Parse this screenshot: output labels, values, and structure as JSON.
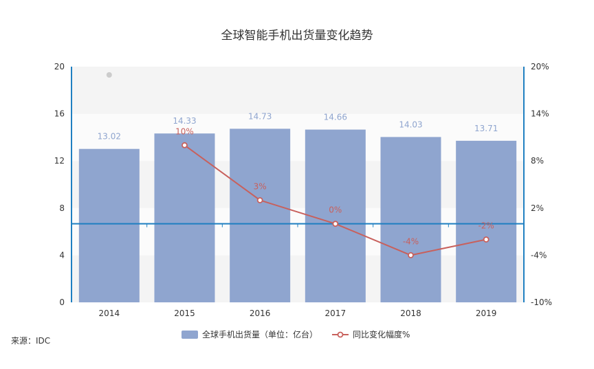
{
  "chart_data": {
    "type": "bar",
    "title": "全球智能手机出货量变化趋势",
    "categories": [
      "2014",
      "2015",
      "2016",
      "2017",
      "2018",
      "2019"
    ],
    "series": [
      {
        "name": "全球手机出货量（单位：亿台）",
        "type": "bar",
        "axis": "left",
        "values": [
          13.02,
          14.33,
          14.73,
          14.66,
          14.03,
          13.71
        ],
        "labels": [
          "13.02",
          "14.33",
          "14.73",
          "14.66",
          "14.03",
          "13.71"
        ],
        "color": "#8fa5cf"
      },
      {
        "name": "同比变化幅度%",
        "type": "line",
        "axis": "right",
        "values": [
          null,
          10,
          3,
          0,
          -4,
          -2
        ],
        "labels": [
          "",
          "10%",
          "3%",
          "0%",
          "-4%",
          "-2%"
        ],
        "color": "#c8605c"
      }
    ],
    "y_left": {
      "range": [
        0,
        20
      ],
      "ticks": [
        0,
        4,
        8,
        12,
        16,
        20
      ],
      "tick_labels": [
        "0",
        "4",
        "8",
        "12",
        "16",
        "20"
      ]
    },
    "y_right": {
      "range": [
        -10,
        20
      ],
      "ticks": [
        -10,
        -4,
        2,
        8,
        14,
        20
      ],
      "tick_labels": [
        "-10%",
        "-4%",
        "2%",
        "8%",
        "14%",
        "20%"
      ]
    },
    "legend_position": "bottom-center",
    "grid": true
  },
  "source_note": "来源：IDC",
  "colors": {
    "axis": "#1f7fc1",
    "band_light": "#f4f4f4",
    "band_white": "#fbfbfb",
    "zero_line": "#1f7fc1",
    "marker_gray": "#cccccc"
  }
}
